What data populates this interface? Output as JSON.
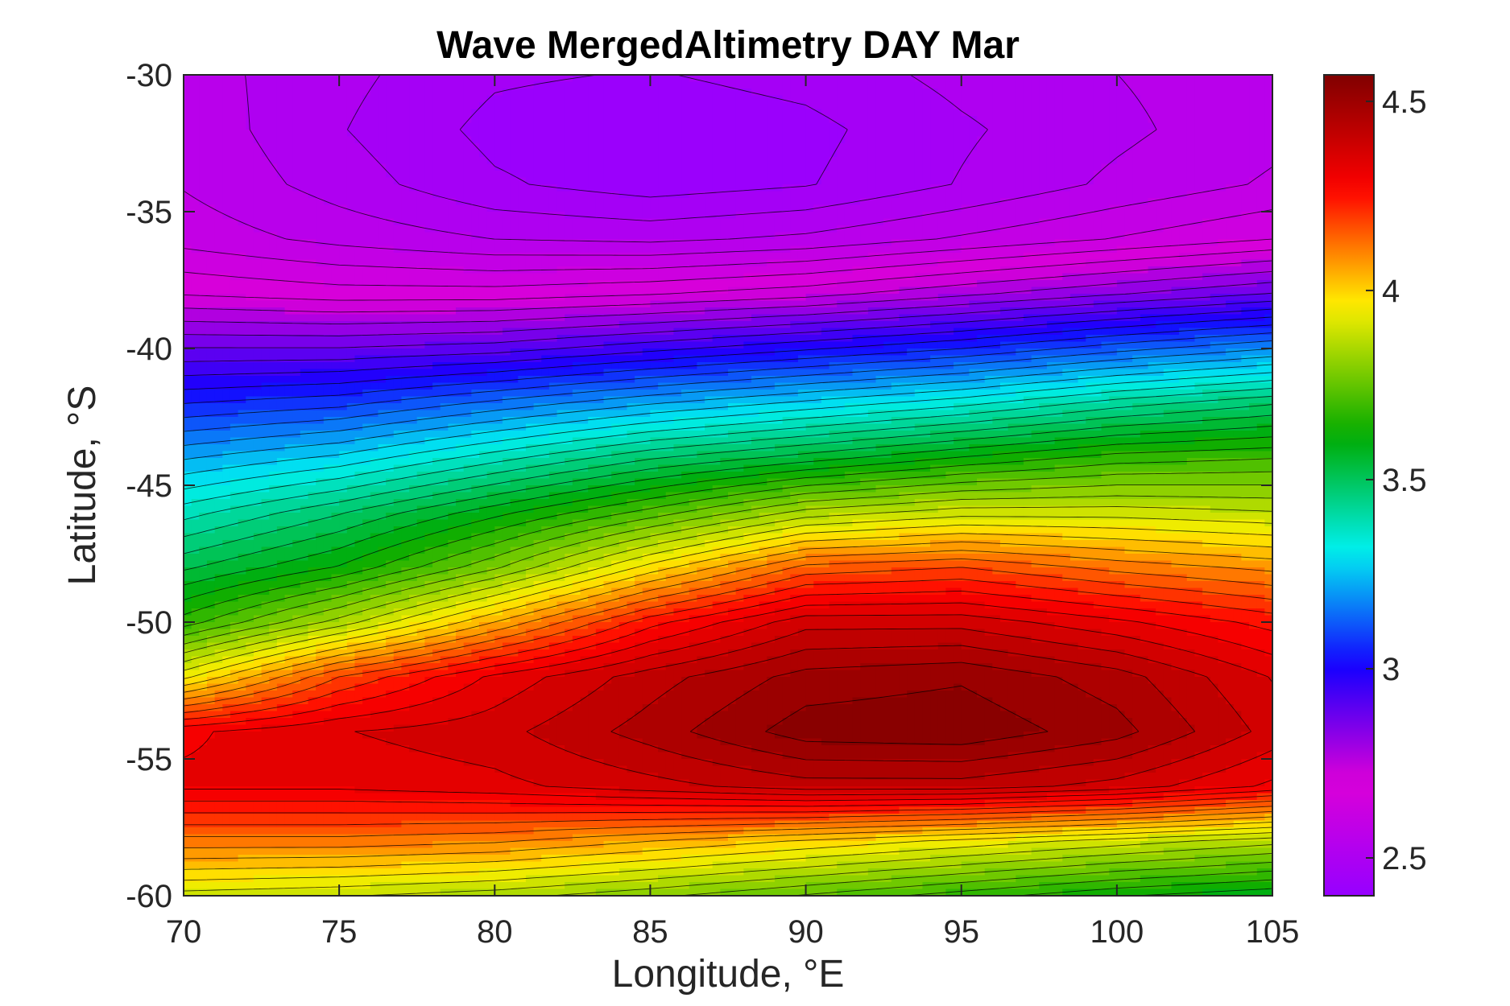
{
  "chart_data": {
    "type": "heatmap",
    "subtype": "filled-contour",
    "title": "Wave MergedAltimetry DAY Mar",
    "xlabel": "Longitude, °E",
    "ylabel": "Latitude, °S",
    "xlim": [
      70,
      105
    ],
    "ylim": [
      -60,
      -30
    ],
    "xticks": [
      70,
      75,
      80,
      85,
      90,
      95,
      100,
      105
    ],
    "yticks": [
      -30,
      -35,
      -40,
      -45,
      -50,
      -55,
      -60
    ],
    "colorbar": {
      "range": [
        2.4,
        4.57
      ],
      "ticks": [
        2.5,
        3,
        3.5,
        4,
        4.5
      ],
      "colormap": "hsv-reversed (violet-blue-cyan-green-yellow-red-darkred)",
      "levels": 50
    },
    "x": [
      70,
      75,
      80,
      85,
      90,
      95,
      100,
      105
    ],
    "y": [
      -30,
      -32,
      -34,
      -36,
      -38,
      -40,
      -42,
      -44,
      -46,
      -48,
      -50,
      -52,
      -54,
      -56,
      -58,
      -60
    ],
    "z": [
      [
        2.55,
        2.5,
        2.45,
        2.44,
        2.46,
        2.5,
        2.53,
        2.56
      ],
      [
        2.56,
        2.49,
        2.43,
        2.41,
        2.43,
        2.48,
        2.52,
        2.56
      ],
      [
        2.57,
        2.51,
        2.45,
        2.42,
        2.44,
        2.49,
        2.54,
        2.58
      ],
      [
        2.6,
        2.56,
        2.53,
        2.52,
        2.54,
        2.58,
        2.62,
        2.66
      ],
      [
        2.7,
        2.68,
        2.68,
        2.7,
        2.73,
        2.78,
        2.83,
        2.88
      ],
      [
        2.88,
        2.88,
        2.9,
        2.95,
        3.0,
        3.05,
        3.12,
        3.18
      ],
      [
        3.05,
        3.08,
        3.15,
        3.22,
        3.28,
        3.34,
        3.42,
        3.48
      ],
      [
        3.22,
        3.28,
        3.38,
        3.48,
        3.55,
        3.62,
        3.68,
        3.7
      ],
      [
        3.38,
        3.48,
        3.6,
        3.72,
        3.85,
        3.9,
        3.9,
        3.88
      ],
      [
        3.52,
        3.62,
        3.78,
        3.98,
        4.15,
        4.18,
        4.12,
        4.08
      ],
      [
        3.68,
        3.85,
        4.05,
        4.25,
        4.38,
        4.38,
        4.32,
        4.25
      ],
      [
        3.95,
        4.18,
        4.32,
        4.42,
        4.5,
        4.52,
        4.46,
        4.35
      ],
      [
        4.3,
        4.35,
        4.38,
        4.46,
        4.55,
        4.56,
        4.5,
        4.38
      ],
      [
        4.32,
        4.32,
        4.34,
        4.38,
        4.42,
        4.42,
        4.38,
        4.3
      ],
      [
        4.12,
        4.12,
        4.1,
        4.05,
        4.0,
        3.95,
        3.9,
        3.85
      ],
      [
        3.9,
        3.88,
        3.85,
        3.8,
        3.74,
        3.68,
        3.62,
        3.58
      ]
    ],
    "grid": false
  }
}
